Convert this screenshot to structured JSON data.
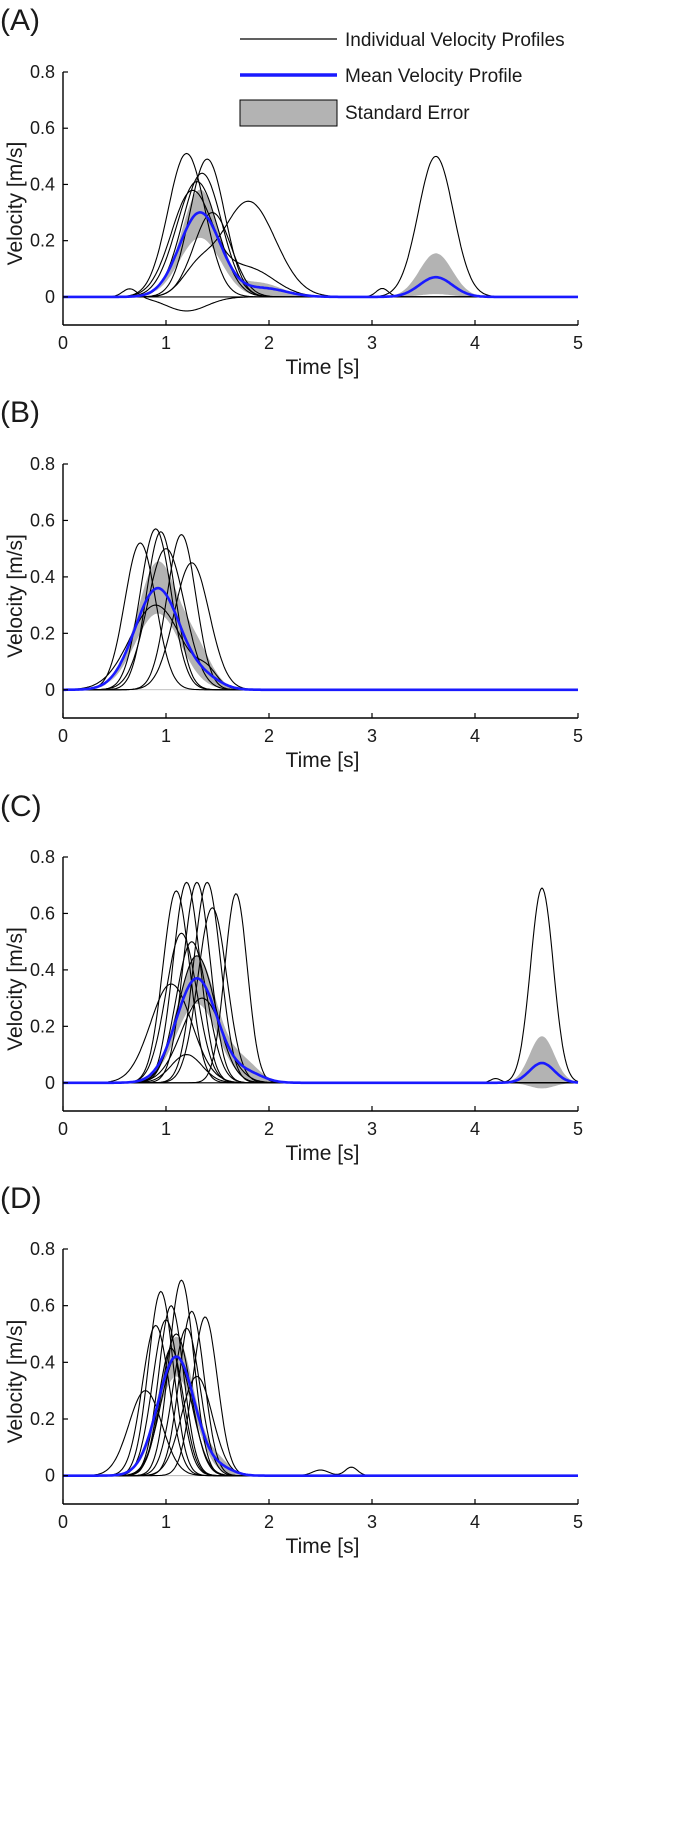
{
  "legend": {
    "individual": "Individual Velocity Profiles",
    "mean": "Mean Velocity Profile",
    "stderr": "Standard Error"
  },
  "colors": {
    "individual": "#000000",
    "mean": "#1a1aff",
    "band": "#b3b3b3",
    "zero": "#aaaaaa"
  },
  "chart_data": [
    {
      "type": "line",
      "panel_label": "(A)",
      "xlabel": "Time [s]",
      "ylabel": "Velocity [m/s]",
      "xlim": [
        0,
        5
      ],
      "ylim": [
        -0.1,
        0.8
      ],
      "xticks": [
        "0",
        "1",
        "2",
        "3",
        "4",
        "5"
      ],
      "yticks": [
        "0",
        "0.2",
        "0.4",
        "0.6",
        "0.8"
      ],
      "individual_profiles": [
        [
          [
            1.2,
            0.51,
            0.18
          ]
        ],
        [
          [
            1.4,
            0.49,
            0.17
          ]
        ],
        [
          [
            1.3,
            0.41,
            0.2
          ]
        ],
        [
          [
            1.35,
            0.44,
            0.19
          ]
        ],
        [
          [
            1.25,
            0.37,
            0.2
          ],
          [
            1.8,
            0.1,
            0.25
          ]
        ],
        [
          [
            1.8,
            0.34,
            0.26
          ],
          [
            1.3,
            0.08,
            0.15
          ]
        ],
        [
          [
            3.62,
            0.5,
            0.17
          ]
        ],
        [
          [
            1.2,
            -0.05,
            0.2
          ],
          [
            0.65,
            0.03,
            0.07
          ]
        ],
        [
          [
            1.45,
            0.3,
            0.18
          ],
          [
            3.1,
            0.03,
            0.06
          ]
        ]
      ],
      "mean_profile": [
        [
          1.33,
          0.3,
          0.2
        ],
        [
          1.95,
          0.03,
          0.22
        ],
        [
          3.62,
          0.07,
          0.16
        ]
      ],
      "stderr_band": {
        "upper": [
          [
            1.33,
            0.38,
            0.18
          ],
          [
            1.9,
            0.05,
            0.22
          ],
          [
            3.62,
            0.155,
            0.16
          ]
        ],
        "lower": [
          [
            1.33,
            0.21,
            0.2
          ],
          [
            3.62,
            0.01,
            0.15
          ]
        ]
      }
    },
    {
      "type": "line",
      "panel_label": "(B)",
      "xlabel": "Time [s]",
      "ylabel": "Velocity [m/s]",
      "xlim": [
        0,
        5
      ],
      "ylim": [
        -0.1,
        0.8
      ],
      "xticks": [
        "0",
        "1",
        "2",
        "3",
        "4",
        "5"
      ],
      "yticks": [
        "0",
        "0.2",
        "0.4",
        "0.6",
        "0.8"
      ],
      "individual_profiles": [
        [
          [
            0.75,
            0.52,
            0.15
          ]
        ],
        [
          [
            0.9,
            0.57,
            0.15
          ]
        ],
        [
          [
            0.95,
            0.56,
            0.14
          ]
        ],
        [
          [
            1.15,
            0.55,
            0.14
          ]
        ],
        [
          [
            1.25,
            0.45,
            0.17
          ]
        ],
        [
          [
            1.0,
            0.5,
            0.18
          ]
        ],
        [
          [
            0.9,
            0.3,
            0.25
          ],
          [
            1.4,
            0.05,
            0.1
          ]
        ]
      ],
      "mean_profile": [
        [
          0.92,
          0.36,
          0.22
        ],
        [
          1.4,
          0.03,
          0.15
        ]
      ],
      "stderr_band": {
        "upper": [
          [
            0.92,
            0.45,
            0.2
          ],
          [
            1.3,
            0.12,
            0.15
          ]
        ],
        "lower": [
          [
            0.92,
            0.27,
            0.22
          ]
        ]
      }
    },
    {
      "type": "line",
      "panel_label": "(C)",
      "xlabel": "Time [s]",
      "ylabel": "Velocity [m/s]",
      "xlim": [
        0,
        5
      ],
      "ylim": [
        -0.1,
        0.8
      ],
      "xticks": [
        "0",
        "1",
        "2",
        "3",
        "4",
        "5"
      ],
      "yticks": [
        "0",
        "0.2",
        "0.4",
        "0.6",
        "0.8"
      ],
      "individual_profiles": [
        [
          [
            1.1,
            0.68,
            0.13
          ]
        ],
        [
          [
            1.2,
            0.71,
            0.13
          ]
        ],
        [
          [
            1.3,
            0.71,
            0.13
          ]
        ],
        [
          [
            1.4,
            0.71,
            0.13
          ]
        ],
        [
          [
            1.45,
            0.62,
            0.14
          ]
        ],
        [
          [
            1.68,
            0.67,
            0.11
          ]
        ],
        [
          [
            1.15,
            0.53,
            0.15
          ]
        ],
        [
          [
            1.25,
            0.5,
            0.15
          ]
        ],
        [
          [
            1.3,
            0.45,
            0.18
          ]
        ],
        [
          [
            1.05,
            0.35,
            0.2
          ]
        ],
        [
          [
            1.35,
            0.3,
            0.2
          ]
        ],
        [
          [
            4.65,
            0.69,
            0.11
          ]
        ],
        [
          [
            1.2,
            0.1,
            0.15
          ],
          [
            4.2,
            0.015,
            0.05
          ]
        ]
      ],
      "mean_profile": [
        [
          1.3,
          0.37,
          0.2
        ],
        [
          1.8,
          0.03,
          0.15
        ],
        [
          4.65,
          0.07,
          0.12
        ]
      ],
      "stderr_band": {
        "upper": [
          [
            1.3,
            0.45,
            0.19
          ],
          [
            1.75,
            0.07,
            0.15
          ],
          [
            4.65,
            0.165,
            0.12
          ]
        ],
        "lower": [
          [
            1.3,
            0.28,
            0.2
          ],
          [
            4.65,
            -0.02,
            0.12
          ]
        ]
      }
    },
    {
      "type": "line",
      "panel_label": "(D)",
      "xlabel": "Time [s]",
      "ylabel": "Velocity [m/s]",
      "xlim": [
        0,
        5
      ],
      "ylim": [
        -0.1,
        0.8
      ],
      "xticks": [
        "0",
        "1",
        "2",
        "3",
        "4",
        "5"
      ],
      "yticks": [
        "0",
        "0.2",
        "0.4",
        "0.6",
        "0.8"
      ],
      "individual_profiles": [
        [
          [
            0.95,
            0.65,
            0.12
          ]
        ],
        [
          [
            1.05,
            0.6,
            0.12
          ]
        ],
        [
          [
            1.15,
            0.69,
            0.12
          ]
        ],
        [
          [
            1.25,
            0.58,
            0.12
          ]
        ],
        [
          [
            1.38,
            0.56,
            0.12
          ]
        ],
        [
          [
            0.9,
            0.53,
            0.13
          ]
        ],
        [
          [
            1.0,
            0.55,
            0.13
          ]
        ],
        [
          [
            1.1,
            0.5,
            0.14
          ]
        ],
        [
          [
            1.2,
            0.52,
            0.13
          ]
        ],
        [
          [
            1.1,
            0.42,
            0.15
          ]
        ],
        [
          [
            1.3,
            0.35,
            0.15
          ]
        ],
        [
          [
            0.8,
            0.3,
            0.16
          ]
        ],
        [
          [
            1.05,
            0.45,
            0.12
          ],
          [
            2.5,
            0.02,
            0.08
          ],
          [
            2.8,
            0.03,
            0.06
          ]
        ]
      ],
      "mean_profile": [
        [
          1.1,
          0.42,
          0.18
        ],
        [
          1.55,
          0.02,
          0.12
        ]
      ],
      "stderr_band": {
        "upper": [
          [
            1.1,
            0.49,
            0.17
          ],
          [
            1.5,
            0.05,
            0.12
          ]
        ],
        "lower": [
          [
            1.1,
            0.35,
            0.18
          ]
        ]
      }
    }
  ]
}
